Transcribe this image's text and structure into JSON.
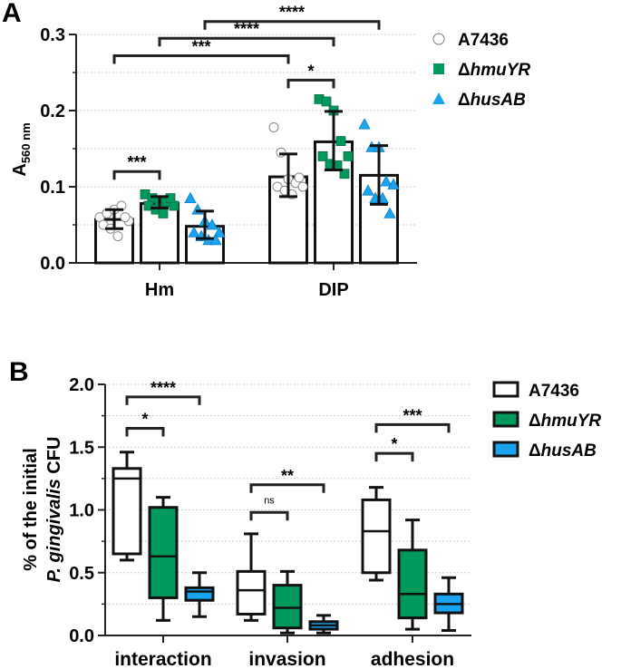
{
  "colors": {
    "A7436": "#ffffff",
    "hmuYR": "#00995c",
    "husAB": "#19a3f0",
    "axis": "#222222",
    "grid": "#cfcfcf"
  },
  "chart_data": [
    {
      "panel": "A",
      "type": "bar",
      "ylabel_main": "A",
      "ylabel_sub": "560 nm",
      "ylim": [
        0,
        0.3
      ],
      "yticks": [
        "0.0",
        "0.1",
        "0.2",
        "0.3"
      ],
      "ytick_values": [
        0,
        0.1,
        0.2,
        0.3
      ],
      "grid": true,
      "legend_placement": "right",
      "categories": [
        "Hm",
        "DIP"
      ],
      "series": [
        {
          "name": "A7436",
          "marker": "circle",
          "mean": [
            0.057,
            0.113
          ],
          "sd_low": [
            0.045,
            0.087
          ],
          "sd_high": [
            0.07,
            0.143
          ],
          "points": [
            [
              0.06,
              0.065,
              0.07,
              0.075,
              0.055,
              0.05,
              0.045,
              0.035,
              0.06
            ],
            [
              0.178,
              0.145,
              0.11,
              0.105,
              0.1,
              0.1,
              0.095,
              0.09,
              0.112
            ]
          ]
        },
        {
          "name": "ΔhmuYR",
          "marker": "square",
          "mean": [
            0.078,
            0.159
          ],
          "sd_low": [
            0.072,
            0.122
          ],
          "sd_high": [
            0.087,
            0.199
          ],
          "points": [
            [
              0.09,
              0.085,
              0.08,
              0.08,
              0.075,
              0.075,
              0.07,
              0.065,
              0.085
            ],
            [
              0.215,
              0.212,
              0.2,
              0.16,
              0.14,
              0.14,
              0.13,
              0.128,
              0.117
            ]
          ]
        },
        {
          "name": "ΔhusAB",
          "marker": "triangle",
          "mean": [
            0.048,
            0.115
          ],
          "sd_low": [
            0.032,
            0.077
          ],
          "sd_high": [
            0.068,
            0.154
          ],
          "points": [
            [
              0.085,
              0.07,
              0.055,
              0.05,
              0.04,
              0.04,
              0.035,
              0.03,
              0.03
            ],
            [
              0.182,
              0.152,
              0.152,
              0.107,
              0.103,
              0.095,
              0.085,
              0.085,
              0.065
            ]
          ]
        }
      ],
      "significance": [
        {
          "from": [
            0,
            0
          ],
          "to": [
            0,
            1
          ],
          "y": 0.12,
          "label": "***"
        },
        {
          "from": [
            1,
            0
          ],
          "to": [
            1,
            1
          ],
          "y": 0.24,
          "label": "*"
        },
        {
          "from": [
            0,
            0
          ],
          "to": [
            1,
            0
          ],
          "y": 0.272,
          "label": "***"
        },
        {
          "from": [
            0,
            1
          ],
          "to": [
            1,
            1
          ],
          "y": 0.295,
          "label": "****"
        },
        {
          "from": [
            0,
            2
          ],
          "to": [
            1,
            2
          ],
          "y": 0.317,
          "label": "****"
        }
      ]
    },
    {
      "panel": "B",
      "type": "box",
      "ylabel_line1": "% of the initial",
      "ylabel_line2_italic": "P. gingivalis",
      "ylabel_line2_rest": " CFU",
      "ylim": [
        0,
        2.0
      ],
      "yticks": [
        "0.0",
        "0.5",
        "1.0",
        "1.5",
        "2.0"
      ],
      "ytick_values": [
        0,
        0.5,
        1.0,
        1.5,
        2.0
      ],
      "grid": true,
      "legend_placement": "right",
      "categories": [
        "interaction",
        "invasion",
        "adhesion"
      ],
      "series": [
        {
          "name": "A7436",
          "boxes": [
            [
              0.6,
              0.65,
              1.25,
              1.33,
              1.46
            ],
            [
              0.12,
              0.17,
              0.36,
              0.51,
              0.81
            ],
            [
              0.44,
              0.5,
              0.83,
              1.08,
              1.18
            ]
          ]
        },
        {
          "name": "ΔhmuYR",
          "boxes": [
            [
              0.12,
              0.3,
              0.63,
              1.02,
              1.1
            ],
            [
              0.02,
              0.06,
              0.22,
              0.4,
              0.51
            ],
            [
              0.05,
              0.14,
              0.33,
              0.68,
              0.92
            ]
          ]
        },
        {
          "name": "ΔhusAB",
          "boxes": [
            [
              0.15,
              0.28,
              0.35,
              0.38,
              0.5
            ],
            [
              0.02,
              0.05,
              0.08,
              0.11,
              0.16
            ],
            [
              0.04,
              0.18,
              0.25,
              0.33,
              0.46
            ]
          ]
        }
      ],
      "significance": [
        {
          "group": 0,
          "from": 0,
          "to": 2,
          "y": 1.9,
          "label": "****"
        },
        {
          "group": 0,
          "from": 0,
          "to": 1,
          "y": 1.65,
          "label": "*"
        },
        {
          "group": 1,
          "from": 0,
          "to": 2,
          "y": 1.2,
          "label": "**"
        },
        {
          "group": 1,
          "from": 0,
          "to": 1,
          "y": 0.98,
          "label": "ns"
        },
        {
          "group": 2,
          "from": 0,
          "to": 2,
          "y": 1.68,
          "label": "***"
        },
        {
          "group": 2,
          "from": 0,
          "to": 1,
          "y": 1.45,
          "label": "*"
        }
      ]
    }
  ]
}
